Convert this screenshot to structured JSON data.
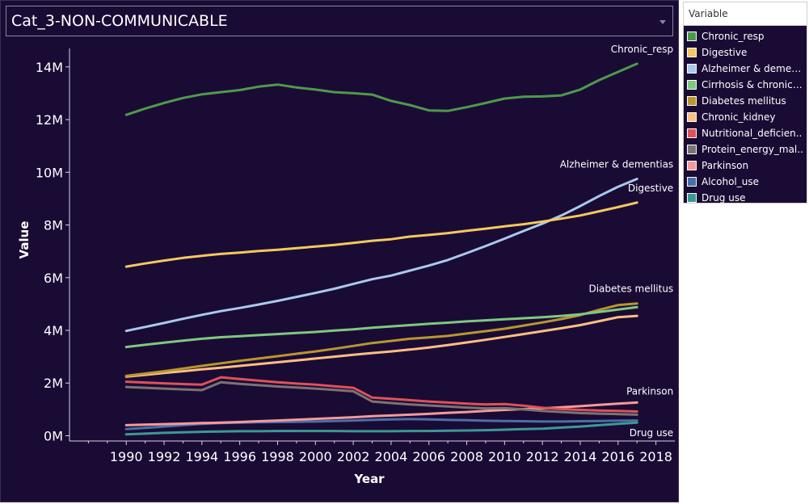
{
  "selector": {
    "value": "Cat_3-NON-COMMUNICABLE"
  },
  "legend": {
    "title": "Variable",
    "items": [
      {
        "label": "Chronic_resp",
        "color": "#4e9a4a"
      },
      {
        "label": "Digestive",
        "color": "#f4c95d"
      },
      {
        "label": "Alzheimer & dementi..",
        "color": "#a9c9ec"
      },
      {
        "label": "Cirrhosis & chronic_l..",
        "color": "#7fc97f"
      },
      {
        "label": "Diabetes mellitus",
        "color": "#b8972e"
      },
      {
        "label": "Chronic_kidney",
        "color": "#fdbf7f"
      },
      {
        "label": "Nutritional_deficien..",
        "color": "#e0505a"
      },
      {
        "label": "Protein_energy_mal..",
        "color": "#7a7473"
      },
      {
        "label": "Parkinson",
        "color": "#f49a9a"
      },
      {
        "label": "Alcohol_use",
        "color": "#4a6fa8"
      },
      {
        "label": "Drug use",
        "color": "#3a9a92"
      }
    ]
  },
  "chart_data": {
    "type": "line",
    "xlabel": "Year",
    "ylabel": "Value",
    "xlim": [
      1987,
      2019
    ],
    "ylim": [
      -0.2,
      14.7
    ],
    "x_ticks": [
      1990,
      1992,
      1994,
      1996,
      1998,
      2000,
      2002,
      2004,
      2006,
      2008,
      2010,
      2012,
      2014,
      2016,
      2018
    ],
    "y_ticks": [
      {
        "value": 0,
        "label": "0M"
      },
      {
        "value": 2,
        "label": "2M"
      },
      {
        "value": 4,
        "label": "4M"
      },
      {
        "value": 6,
        "label": "6M"
      },
      {
        "value": 8,
        "label": "8M"
      },
      {
        "value": 10,
        "label": "10M"
      },
      {
        "value": 12,
        "label": "12M"
      },
      {
        "value": 14,
        "label": "14M"
      }
    ],
    "x": [
      1990,
      1991,
      1992,
      1993,
      1994,
      1995,
      1996,
      1997,
      1998,
      1999,
      2000,
      2001,
      2002,
      2003,
      2004,
      2005,
      2006,
      2007,
      2008,
      2009,
      2010,
      2011,
      2012,
      2013,
      2014,
      2015,
      2016,
      2017
    ],
    "series": [
      {
        "name": "Chronic_resp",
        "color": "#4e9a4a",
        "values": [
          12.18,
          12.42,
          12.63,
          12.82,
          12.96,
          13.04,
          13.12,
          13.25,
          13.33,
          13.22,
          13.14,
          13.04,
          13.0,
          12.95,
          12.71,
          12.55,
          12.35,
          12.33,
          12.47,
          12.63,
          12.8,
          12.87,
          12.88,
          12.92,
          13.14,
          13.5,
          13.81,
          14.12
        ],
        "end_label": "Chronic_resp"
      },
      {
        "name": "Digestive",
        "color": "#f4c95d",
        "values": [
          6.42,
          6.54,
          6.65,
          6.75,
          6.83,
          6.9,
          6.95,
          7.01,
          7.06,
          7.12,
          7.18,
          7.24,
          7.32,
          7.4,
          7.46,
          7.56,
          7.62,
          7.69,
          7.78,
          7.86,
          7.95,
          8.03,
          8.13,
          8.24,
          8.36,
          8.52,
          8.68,
          8.85
        ],
        "end_label": "Digestive"
      },
      {
        "name": "Alzheimer & dementias",
        "color": "#a9c9ec",
        "values": [
          3.98,
          4.13,
          4.28,
          4.44,
          4.59,
          4.73,
          4.85,
          4.98,
          5.12,
          5.27,
          5.42,
          5.58,
          5.76,
          5.94,
          6.08,
          6.27,
          6.46,
          6.67,
          6.93,
          7.2,
          7.48,
          7.77,
          8.05,
          8.36,
          8.72,
          9.1,
          9.45,
          9.75
        ],
        "end_label": "Alzheimer & dementias"
      },
      {
        "name": "Cirrhosis & chronic_liver",
        "color": "#7fc97f",
        "values": [
          3.37,
          3.45,
          3.53,
          3.61,
          3.68,
          3.74,
          3.78,
          3.82,
          3.86,
          3.9,
          3.94,
          3.99,
          4.04,
          4.1,
          4.15,
          4.2,
          4.25,
          4.29,
          4.34,
          4.38,
          4.42,
          4.46,
          4.5,
          4.55,
          4.61,
          4.7,
          4.79,
          4.88
        ]
      },
      {
        "name": "Diabetes mellitus",
        "color": "#b8972e",
        "values": [
          2.27,
          2.36,
          2.45,
          2.55,
          2.65,
          2.75,
          2.84,
          2.93,
          3.02,
          3.11,
          3.2,
          3.3,
          3.41,
          3.52,
          3.6,
          3.68,
          3.73,
          3.79,
          3.88,
          3.97,
          4.06,
          4.18,
          4.3,
          4.43,
          4.58,
          4.78,
          4.96,
          5.02
        ],
        "end_label": "Diabetes mellitus"
      },
      {
        "name": "Chronic_kidney",
        "color": "#fdbf7f",
        "values": [
          2.24,
          2.31,
          2.38,
          2.45,
          2.52,
          2.58,
          2.65,
          2.72,
          2.79,
          2.86,
          2.93,
          3.0,
          3.07,
          3.14,
          3.2,
          3.27,
          3.35,
          3.44,
          3.54,
          3.64,
          3.75,
          3.86,
          3.97,
          4.08,
          4.2,
          4.35,
          4.5,
          4.55
        ]
      },
      {
        "name": "Nutritional_deficiencies",
        "color": "#e0505a",
        "values": [
          2.05,
          2.02,
          1.99,
          1.96,
          1.94,
          2.22,
          2.15,
          2.09,
          2.03,
          1.98,
          1.94,
          1.88,
          1.82,
          1.45,
          1.4,
          1.35,
          1.3,
          1.26,
          1.22,
          1.19,
          1.2,
          1.14,
          1.06,
          1.01,
          0.98,
          0.96,
          0.94,
          0.92
        ]
      },
      {
        "name": "Protein_energy_malnutrition",
        "color": "#7a7473",
        "values": [
          1.85,
          1.82,
          1.79,
          1.76,
          1.73,
          2.03,
          1.97,
          1.92,
          1.87,
          1.83,
          1.79,
          1.74,
          1.69,
          1.3,
          1.24,
          1.19,
          1.15,
          1.11,
          1.07,
          1.04,
          1.05,
          1.0,
          0.94,
          0.9,
          0.86,
          0.84,
          0.82,
          0.8
        ]
      },
      {
        "name": "Parkinson",
        "color": "#f49a9a",
        "values": [
          0.4,
          0.42,
          0.44,
          0.46,
          0.48,
          0.5,
          0.52,
          0.55,
          0.58,
          0.61,
          0.64,
          0.67,
          0.7,
          0.74,
          0.77,
          0.8,
          0.83,
          0.87,
          0.9,
          0.94,
          0.98,
          1.01,
          1.04,
          1.08,
          1.12,
          1.17,
          1.22,
          1.26
        ],
        "end_label": "Parkinson"
      },
      {
        "name": "Alcohol_use",
        "color": "#4a6fa8",
        "values": [
          0.25,
          0.3,
          0.35,
          0.4,
          0.45,
          0.48,
          0.5,
          0.51,
          0.52,
          0.53,
          0.54,
          0.56,
          0.58,
          0.6,
          0.62,
          0.63,
          0.62,
          0.6,
          0.59,
          0.57,
          0.56,
          0.55,
          0.54,
          0.54,
          0.55,
          0.56,
          0.57,
          0.58
        ]
      },
      {
        "name": "Drug use",
        "color": "#3a9a92",
        "values": [
          0.05,
          0.08,
          0.11,
          0.13,
          0.15,
          0.16,
          0.17,
          0.17,
          0.18,
          0.18,
          0.18,
          0.18,
          0.17,
          0.17,
          0.17,
          0.18,
          0.18,
          0.19,
          0.2,
          0.21,
          0.23,
          0.25,
          0.27,
          0.31,
          0.35,
          0.4,
          0.45,
          0.5
        ],
        "end_label": "Drug use"
      }
    ]
  }
}
